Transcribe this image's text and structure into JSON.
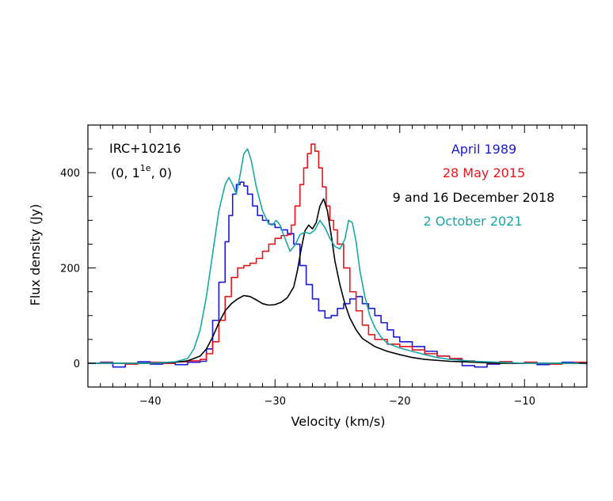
{
  "chart_data": {
    "type": "line",
    "xlabel": "Velocity (km/s)",
    "ylabel": "Flux density (Jy)",
    "xlim": [
      -45,
      -5
    ],
    "ylim": [
      -50,
      500
    ],
    "x_ticks": [
      -40,
      -30,
      -20,
      -10
    ],
    "x_tick_labels": [
      "−40",
      "−30",
      "−20",
      "−10"
    ],
    "y_ticks": [
      0,
      200,
      400
    ],
    "y_tick_labels": [
      "0",
      "200",
      "400"
    ],
    "grid": false,
    "legend_placement": "top-right",
    "annotations": {
      "source": "IRC+10216",
      "transition_prefix": "(0, 1",
      "transition_sup": "1e",
      "transition_suffix": ", 0)"
    },
    "series": [
      {
        "name": "April 1989",
        "color": "#1a1ad8",
        "step": true,
        "points": [
          [
            -45,
            0
          ],
          [
            -44,
            2
          ],
          [
            -43,
            -8
          ],
          [
            -42,
            0
          ],
          [
            -41,
            3
          ],
          [
            -40,
            -2
          ],
          [
            -39,
            0
          ],
          [
            -38,
            -3
          ],
          [
            -37,
            2
          ],
          [
            -36,
            4
          ],
          [
            -35.5,
            30
          ],
          [
            -35,
            90
          ],
          [
            -34.5,
            170
          ],
          [
            -34,
            255
          ],
          [
            -33.7,
            310
          ],
          [
            -33.4,
            355
          ],
          [
            -33.1,
            375
          ],
          [
            -32.8,
            380
          ],
          [
            -32.5,
            372
          ],
          [
            -32.2,
            355
          ],
          [
            -31.8,
            330
          ],
          [
            -31.4,
            310
          ],
          [
            -31,
            300
          ],
          [
            -30.5,
            292
          ],
          [
            -30,
            285
          ],
          [
            -29.5,
            280
          ],
          [
            -29,
            272
          ],
          [
            -28.5,
            250
          ],
          [
            -28,
            205
          ],
          [
            -27.5,
            165
          ],
          [
            -27,
            135
          ],
          [
            -26.5,
            110
          ],
          [
            -26,
            95
          ],
          [
            -25.5,
            100
          ],
          [
            -25,
            115
          ],
          [
            -24.5,
            125
          ],
          [
            -24,
            135
          ],
          [
            -23.5,
            140
          ],
          [
            -23,
            125
          ],
          [
            -22.5,
            115
          ],
          [
            -22,
            100
          ],
          [
            -21.5,
            85
          ],
          [
            -21,
            70
          ],
          [
            -20.5,
            55
          ],
          [
            -20,
            45
          ],
          [
            -19,
            35
          ],
          [
            -18,
            25
          ],
          [
            -17,
            15
          ],
          [
            -16,
            8
          ],
          [
            -15,
            -5
          ],
          [
            -14,
            -8
          ],
          [
            -13,
            -2
          ],
          [
            -12,
            3
          ],
          [
            -11,
            0
          ],
          [
            -10,
            2
          ],
          [
            -9,
            -3
          ],
          [
            -8,
            0
          ],
          [
            -7,
            2
          ],
          [
            -6,
            0
          ],
          [
            -5,
            -2
          ]
        ]
      },
      {
        "name": "28 May 2015",
        "color": "#e8141a",
        "step": true,
        "points": [
          [
            -45,
            0
          ],
          [
            -44,
            1
          ],
          [
            -43,
            0
          ],
          [
            -42,
            -2
          ],
          [
            -41,
            0
          ],
          [
            -40,
            2
          ],
          [
            -39,
            0
          ],
          [
            -38,
            3
          ],
          [
            -37,
            5
          ],
          [
            -36,
            8
          ],
          [
            -35.5,
            20
          ],
          [
            -35,
            45
          ],
          [
            -34.5,
            90
          ],
          [
            -34,
            140
          ],
          [
            -33.5,
            180
          ],
          [
            -33,
            200
          ],
          [
            -32.5,
            205
          ],
          [
            -32,
            210
          ],
          [
            -31.5,
            220
          ],
          [
            -31,
            235
          ],
          [
            -30.5,
            250
          ],
          [
            -30,
            262
          ],
          [
            -29.5,
            268
          ],
          [
            -29,
            270
          ],
          [
            -28.7,
            290
          ],
          [
            -28.4,
            330
          ],
          [
            -28,
            375
          ],
          [
            -27.7,
            410
          ],
          [
            -27.4,
            440
          ],
          [
            -27.1,
            460
          ],
          [
            -26.8,
            445
          ],
          [
            -26.5,
            410
          ],
          [
            -26.2,
            370
          ],
          [
            -25.9,
            330
          ],
          [
            -25.6,
            300
          ],
          [
            -25.3,
            280
          ],
          [
            -25,
            250
          ],
          [
            -24.5,
            200
          ],
          [
            -24,
            150
          ],
          [
            -23.5,
            110
          ],
          [
            -23,
            80
          ],
          [
            -22.5,
            60
          ],
          [
            -22,
            50
          ],
          [
            -21,
            40
          ],
          [
            -20,
            35
          ],
          [
            -19,
            28
          ],
          [
            -18,
            20
          ],
          [
            -17,
            15
          ],
          [
            -16,
            10
          ],
          [
            -15,
            5
          ],
          [
            -14,
            2
          ],
          [
            -13,
            0
          ],
          [
            -12,
            3
          ],
          [
            -11,
            0
          ],
          [
            -10,
            2
          ],
          [
            -9,
            0
          ],
          [
            -8,
            -2
          ],
          [
            -7,
            0
          ],
          [
            -6,
            2
          ],
          [
            -5,
            0
          ]
        ]
      },
      {
        "name": "9 and 16 December 2018",
        "color": "#000000",
        "step": false,
        "points": [
          [
            -45,
            0
          ],
          [
            -40,
            0
          ],
          [
            -38,
            2
          ],
          [
            -37,
            5
          ],
          [
            -36,
            15
          ],
          [
            -35.5,
            30
          ],
          [
            -35,
            55
          ],
          [
            -34.5,
            85
          ],
          [
            -34,
            110
          ],
          [
            -33.5,
            125
          ],
          [
            -33,
            135
          ],
          [
            -32.5,
            142
          ],
          [
            -32,
            140
          ],
          [
            -31.5,
            133
          ],
          [
            -31,
            125
          ],
          [
            -30.5,
            122
          ],
          [
            -30,
            123
          ],
          [
            -29.5,
            128
          ],
          [
            -29,
            138
          ],
          [
            -28.5,
            160
          ],
          [
            -28.2,
            195
          ],
          [
            -27.9,
            240
          ],
          [
            -27.6,
            278
          ],
          [
            -27.3,
            290
          ],
          [
            -27,
            282
          ],
          [
            -26.7,
            295
          ],
          [
            -26.4,
            330
          ],
          [
            -26.1,
            345
          ],
          [
            -25.8,
            320
          ],
          [
            -25.5,
            270
          ],
          [
            -25.2,
            215
          ],
          [
            -24.8,
            165
          ],
          [
            -24.4,
            125
          ],
          [
            -24,
            95
          ],
          [
            -23.5,
            70
          ],
          [
            -23,
            52
          ],
          [
            -22,
            35
          ],
          [
            -21,
            25
          ],
          [
            -20,
            18
          ],
          [
            -19,
            12
          ],
          [
            -18,
            8
          ],
          [
            -16,
            4
          ],
          [
            -14,
            2
          ],
          [
            -12,
            0
          ],
          [
            -10,
            0
          ],
          [
            -8,
            0
          ],
          [
            -5,
            0
          ]
        ]
      },
      {
        "name": "2 October 2021",
        "color": "#1aa6a6",
        "step": false,
        "points": [
          [
            -45,
            0
          ],
          [
            -40,
            0
          ],
          [
            -38,
            3
          ],
          [
            -37,
            10
          ],
          [
            -36.5,
            30
          ],
          [
            -36,
            70
          ],
          [
            -35.5,
            140
          ],
          [
            -35,
            230
          ],
          [
            -34.5,
            320
          ],
          [
            -34,
            375
          ],
          [
            -33.7,
            390
          ],
          [
            -33.4,
            375
          ],
          [
            -33.1,
            355
          ],
          [
            -32.8,
            395
          ],
          [
            -32.5,
            440
          ],
          [
            -32.2,
            450
          ],
          [
            -31.9,
            425
          ],
          [
            -31.5,
            370
          ],
          [
            -31,
            320
          ],
          [
            -30.5,
            292
          ],
          [
            -30.2,
            290
          ],
          [
            -29.9,
            300
          ],
          [
            -29.6,
            290
          ],
          [
            -29.2,
            262
          ],
          [
            -28.8,
            235
          ],
          [
            -28.4,
            248
          ],
          [
            -28,
            270
          ],
          [
            -27.6,
            275
          ],
          [
            -27.2,
            272
          ],
          [
            -26.8,
            280
          ],
          [
            -26.4,
            300
          ],
          [
            -26,
            285
          ],
          [
            -25.6,
            262
          ],
          [
            -25.2,
            245
          ],
          [
            -24.8,
            240
          ],
          [
            -24.4,
            260
          ],
          [
            -24.1,
            300
          ],
          [
            -23.8,
            295
          ],
          [
            -23.5,
            255
          ],
          [
            -23.2,
            195
          ],
          [
            -22.8,
            140
          ],
          [
            -22.4,
            100
          ],
          [
            -22,
            75
          ],
          [
            -21.5,
            55
          ],
          [
            -21,
            42
          ],
          [
            -20,
            32
          ],
          [
            -19,
            25
          ],
          [
            -18,
            18
          ],
          [
            -17,
            12
          ],
          [
            -16,
            8
          ],
          [
            -14,
            4
          ],
          [
            -12,
            2
          ],
          [
            -10,
            0
          ],
          [
            -8,
            0
          ],
          [
            -5,
            0
          ]
        ]
      }
    ]
  }
}
